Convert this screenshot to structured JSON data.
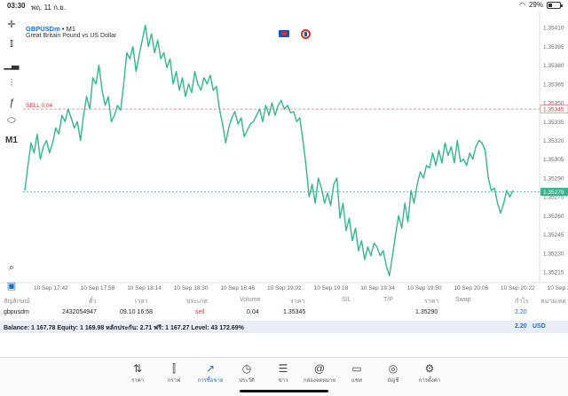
{
  "status": {
    "time": "03:30",
    "date": "พฤ. 11 ก.ย.",
    "battery": "29%",
    "battery_level": 0.29
  },
  "chart": {
    "symbol": "GBPUSDm",
    "timeframe": "• M1",
    "description": "Great Britain Pound vs US Dollar",
    "sell_label": "SELL 0.04",
    "sell_price": "1.35345",
    "current_price": "1.35279",
    "price_labels": [
      "1.35410",
      "1.35395",
      "1.35380",
      "1.35365",
      "1.35350",
      "1.35335",
      "1.35320",
      "1.35305",
      "1.35290",
      "1.35275",
      "1.35260",
      "1.35245",
      "1.35230",
      "1.35215"
    ],
    "time_labels": [
      "10 Sep 17:42",
      "10 Sep 17:58",
      "10 Sep 18:14",
      "10 Sep 18:30",
      "10 Sep 18:46",
      "10 Sep 19:02",
      "10 Sep 19:18",
      "10 Sep 19:34",
      "10 Sep 19:50",
      "10 Sep 20:06",
      "10 Sep 20:22",
      "10 Sep 20:3"
    ]
  },
  "chart_data": {
    "type": "line",
    "ylim": [
      1.35208,
      1.3542
    ],
    "series": [
      {
        "values": [
          1.3528,
          1.353,
          1.35318,
          1.3531,
          1.35325,
          1.35305,
          1.35315,
          1.3532,
          1.3531,
          1.35318,
          1.3533,
          1.35325,
          1.3534,
          1.35335,
          1.35345,
          1.35338,
          1.3533,
          1.35335,
          1.3532,
          1.3534,
          1.35355,
          1.35345,
          1.3537,
          1.35365,
          1.3538,
          1.3536,
          1.35348,
          1.35355,
          1.35335,
          1.3534,
          1.35348,
          1.35344,
          1.35365,
          1.3539,
          1.35385,
          1.35395,
          1.35375,
          1.35388,
          1.354,
          1.35412,
          1.35395,
          1.35405,
          1.3539,
          1.354,
          1.35385,
          1.3539,
          1.35378,
          1.35385,
          1.35365,
          1.35375,
          1.3536,
          1.3537,
          1.35355,
          1.35365,
          1.35358,
          1.35375,
          1.35365,
          1.3536,
          1.3537,
          1.35365,
          1.35372,
          1.3536,
          1.35363,
          1.35345,
          1.35333,
          1.35318,
          1.3533,
          1.35338,
          1.35343,
          1.35333,
          1.35338,
          1.35323,
          1.35328,
          1.35333,
          1.35335,
          1.3534,
          1.35345,
          1.35335,
          1.35348,
          1.3534,
          1.3535,
          1.3534,
          1.35348,
          1.35352,
          1.35345,
          1.35348,
          1.35342,
          1.35343,
          1.35335,
          1.35338,
          1.3532,
          1.353,
          1.35275,
          1.35285,
          1.3527,
          1.3529,
          1.35282,
          1.3527,
          1.35278,
          1.35268,
          1.35285,
          1.3529,
          1.35258,
          1.3527,
          1.35248,
          1.35258,
          1.3524,
          1.3525,
          1.35232,
          1.3524,
          1.35225,
          1.35235,
          1.35228,
          1.35238,
          1.35235,
          1.35228,
          1.35232,
          1.3522,
          1.35212,
          1.35228,
          1.35245,
          1.3526,
          1.3525,
          1.3527,
          1.35255,
          1.3528,
          1.3527,
          1.35285,
          1.35295,
          1.3529,
          1.353,
          1.35298,
          1.3531,
          1.353,
          1.35312,
          1.35302,
          1.35318,
          1.35308,
          1.35315,
          1.35302,
          1.3532,
          1.35303,
          1.35305,
          1.353,
          1.3531,
          1.35305,
          1.35315,
          1.3532,
          1.35318,
          1.35312,
          1.3529,
          1.3528,
          1.35282,
          1.3527,
          1.35262,
          1.3527,
          1.3528,
          1.35275,
          1.3528
        ]
      }
    ]
  },
  "table": {
    "headers": [
      "สัญลักษณ์",
      "ตั๋ว",
      "เวลา",
      "ประเภท",
      "Volume",
      "ราคา",
      "S/L",
      "T/P",
      "ราคา",
      "Swap",
      "กำไร",
      "หมายเหตุ"
    ],
    "rows": [
      {
        "symbol": "gbpusdm",
        "ticket": "2432054947",
        "time": "09.10 16:58",
        "type": "sell",
        "volume": "0.04",
        "open_price": "1.35345",
        "sl": "",
        "tp": "",
        "price": "1.35290",
        "swap": "",
        "profit": "2.20",
        "comment": ""
      }
    ]
  },
  "balance": {
    "text": "Balance: 1 167.78 Equity: 1 169.98 หลักประกัน: 2.71 ฟรี: 1 167.27 Level: 43 172.69%",
    "profit": "2.20",
    "currency": "USD"
  },
  "nav": [
    {
      "label": "ราคา",
      "icon": "updown-arrows-icon"
    },
    {
      "label": "กราฟ",
      "icon": "candles-icon"
    },
    {
      "label": "การซื้อขาย",
      "icon": "trade-chart-icon",
      "active": true
    },
    {
      "label": "ประวัติ",
      "icon": "clock-icon"
    },
    {
      "label": "ข่าว",
      "icon": "news-icon"
    },
    {
      "label": "กล่องจดหมาย",
      "icon": "at-icon"
    },
    {
      "label": "แชท",
      "icon": "chat-icon"
    },
    {
      "label": "บัญชี",
      "icon": "account-icon"
    },
    {
      "label": "การตั้งค่า",
      "icon": "gear-icon"
    }
  ],
  "colors": {
    "line": "#36b48c",
    "sell": "#d32f2f",
    "active": "#1a6fd4",
    "current_price_bg": "#36b48c"
  }
}
